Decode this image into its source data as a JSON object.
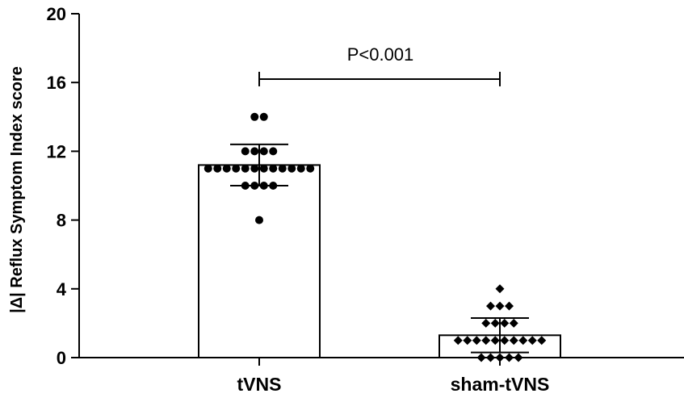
{
  "chart_data": {
    "type": "bar",
    "ylabel": "|Δ| Reflux Symptom Index score",
    "xlabel": "",
    "ylim": [
      0,
      20
    ],
    "yticks": [
      0,
      4,
      8,
      12,
      16,
      20
    ],
    "ytick_labels": [
      "0",
      "4",
      "8",
      "12",
      "16",
      "20"
    ],
    "categories": [
      "tVNS",
      "sham-tVNS"
    ],
    "values": [
      11.2,
      1.3
    ],
    "error_sd": [
      1.2,
      1.0
    ],
    "points": [
      [
        14,
        14,
        12,
        12,
        12,
        12,
        11,
        11,
        11,
        11,
        11,
        11,
        11,
        11,
        11,
        11,
        11,
        11,
        10,
        10,
        10,
        10,
        8
      ],
      [
        4,
        3,
        3,
        3,
        2,
        2,
        2,
        2,
        1,
        1,
        1,
        1,
        1,
        1,
        1,
        1,
        1,
        1,
        0,
        0,
        0,
        0,
        0
      ]
    ],
    "annotation": {
      "text": "P<0.001",
      "bracket_y": 16.2,
      "between": [
        "tVNS",
        "sham-tVNS"
      ]
    },
    "grid": false,
    "legend": "none",
    "colors": {
      "bar_fill": "#ffffff",
      "stroke": "#000000"
    },
    "markers": [
      "circle",
      "diamond"
    ]
  }
}
